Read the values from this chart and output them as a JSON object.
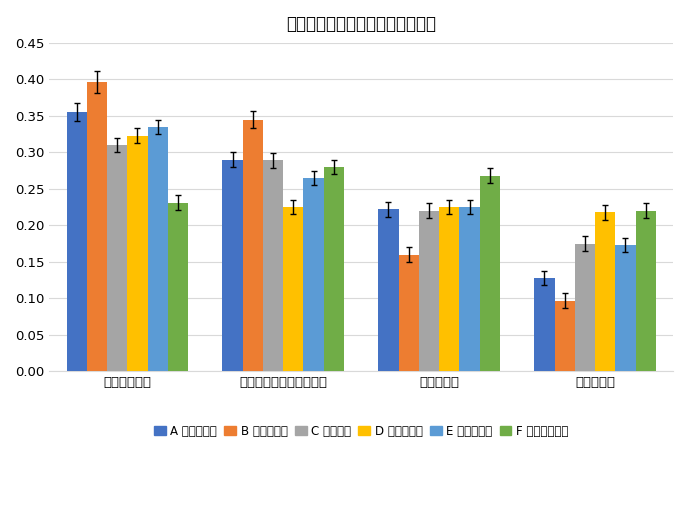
{
  "title": "メッセージによる避難行動の違い",
  "categories": [
    "避難場所避難",
    "避難場所・自宅以外避難",
    "自宅内避難",
    "避難しない"
  ],
  "series": [
    {
      "label": "A 同調＋利得",
      "color": "#4472C4",
      "values": [
        0.355,
        0.29,
        0.222,
        0.128
      ],
      "errors": [
        0.012,
        0.01,
        0.01,
        0.01
      ]
    },
    {
      "label": "B 同調＋損失",
      "color": "#ED7D31",
      "values": [
        0.396,
        0.345,
        0.16,
        0.097
      ],
      "errors": [
        0.015,
        0.012,
        0.01,
        0.01
      ]
    },
    {
      "label": "C 身元確認",
      "color": "#A5A5A5",
      "values": [
        0.31,
        0.289,
        0.22,
        0.175
      ],
      "errors": [
        0.01,
        0.01,
        0.01,
        0.01
      ]
    },
    {
      "label": "D 避難所利得",
      "color": "#FFC000",
      "values": [
        0.323,
        0.225,
        0.225,
        0.218
      ],
      "errors": [
        0.01,
        0.01,
        0.01,
        0.01
      ]
    },
    {
      "label": "E 避難所損失",
      "color": "#5B9BD5",
      "values": [
        0.335,
        0.265,
        0.225,
        0.173
      ],
      "errors": [
        0.01,
        0.01,
        0.01,
        0.01
      ]
    },
    {
      "label": "F コントロール",
      "color": "#70AD47",
      "values": [
        0.231,
        0.28,
        0.268,
        0.22
      ],
      "errors": [
        0.01,
        0.01,
        0.01,
        0.01
      ]
    }
  ],
  "ylim": [
    0.0,
    0.45
  ],
  "yticks": [
    0.0,
    0.05,
    0.1,
    0.15,
    0.2,
    0.25,
    0.3,
    0.35,
    0.4,
    0.45
  ],
  "background_color": "#FFFFFF",
  "grid_color": "#D9D9D9",
  "title_fontsize": 12,
  "legend_fontsize": 8.5,
  "tick_fontsize": 9.5
}
